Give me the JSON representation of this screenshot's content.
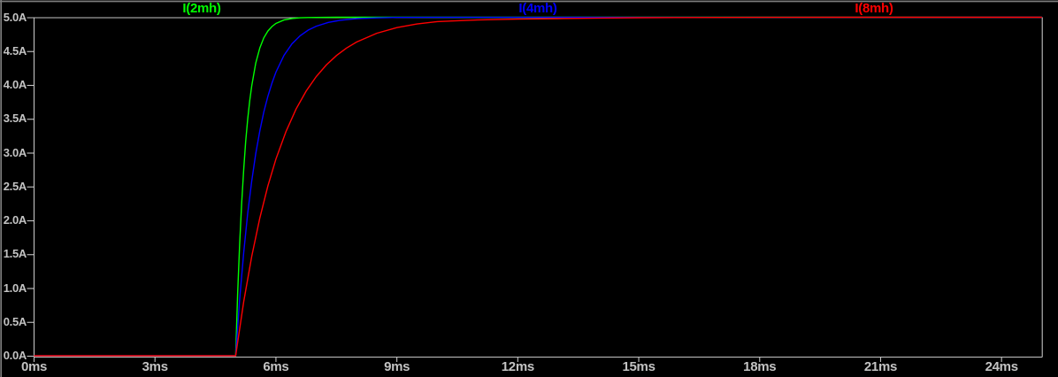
{
  "window": {
    "app": "waveform-viewer",
    "background": "#000000",
    "border_color": "#7d7d7d"
  },
  "axes": {
    "color": "#c3c3c3",
    "text_color": "#c3c3c3"
  },
  "chart_data": {
    "type": "line",
    "title": "",
    "legend_position": "top-inside",
    "grid": "top-gridline-only-at-5A",
    "x_unit": "ms",
    "y_unit": "A",
    "x_range_ms": [
      0,
      25
    ],
    "y_range_A": [
      0,
      5
    ],
    "x_tick_values": [
      0,
      3,
      6,
      9,
      12,
      15,
      18,
      21,
      24
    ],
    "x_tick_labels": [
      "0ms",
      "3ms",
      "6ms",
      "9ms",
      "12ms",
      "15ms",
      "18ms",
      "21ms",
      "24ms"
    ],
    "y_tick_values": [
      5.0,
      4.5,
      4.0,
      3.5,
      3.0,
      2.5,
      2.0,
      1.5,
      1.0,
      0.5,
      0.0
    ],
    "y_tick_labels": [
      "5.0A",
      "4.5A",
      "4.0A",
      "3.5A",
      "3.0A",
      "2.5A",
      "2.0A",
      "1.5A",
      "1.0A",
      "0.5A",
      "0.0A"
    ],
    "description": "Inductor current step response starting at t=5ms, rising exponentially to 5A; smaller inductance settles faster.",
    "series": [
      {
        "name": "I(2mh)",
        "color": "#00ff00",
        "points": [
          [
            0,
            0
          ],
          [
            5,
            0
          ],
          [
            5.05,
            0.906
          ],
          [
            5.1,
            1.648
          ],
          [
            5.15,
            2.256
          ],
          [
            5.2,
            2.753
          ],
          [
            5.25,
            3.161
          ],
          [
            5.3,
            3.494
          ],
          [
            5.35,
            3.767
          ],
          [
            5.4,
            3.99
          ],
          [
            5.5,
            4.323
          ],
          [
            5.6,
            4.546
          ],
          [
            5.7,
            4.696
          ],
          [
            5.8,
            4.796
          ],
          [
            5.9,
            4.863
          ],
          [
            6,
            4.908
          ],
          [
            6.2,
            4.959
          ],
          [
            6.4,
            4.982
          ],
          [
            6.6,
            4.992
          ],
          [
            6.8,
            4.996
          ],
          [
            7,
            4.998
          ],
          [
            7.5,
            5
          ],
          [
            25,
            5
          ]
        ]
      },
      {
        "name": "I(4mh)",
        "color": "#0000ff",
        "points": [
          [
            0,
            0
          ],
          [
            5,
            0
          ],
          [
            5.1,
            0.831
          ],
          [
            5.2,
            1.524
          ],
          [
            5.3,
            2.103
          ],
          [
            5.4,
            2.584
          ],
          [
            5.5,
            2.986
          ],
          [
            5.6,
            3.32
          ],
          [
            5.7,
            3.6
          ],
          [
            5.8,
            3.832
          ],
          [
            5.9,
            4.026
          ],
          [
            6,
            4.188
          ],
          [
            6.2,
            4.436
          ],
          [
            6.4,
            4.608
          ],
          [
            6.6,
            4.727
          ],
          [
            6.8,
            4.81
          ],
          [
            7,
            4.868
          ],
          [
            7.3,
            4.924
          ],
          [
            7.6,
            4.956
          ],
          [
            8,
            4.979
          ],
          [
            8.5,
            4.991
          ],
          [
            9,
            4.997
          ],
          [
            10,
            4.999
          ],
          [
            25,
            5
          ]
        ]
      },
      {
        "name": "I(8mh)",
        "color": "#ff0000",
        "points": [
          [
            0,
            0
          ],
          [
            5,
            0
          ],
          [
            5.2,
            0.799
          ],
          [
            5.4,
            1.47
          ],
          [
            5.6,
            2.034
          ],
          [
            5.8,
            2.507
          ],
          [
            6,
            2.905
          ],
          [
            6.25,
            3.313
          ],
          [
            6.5,
            3.645
          ],
          [
            6.75,
            3.91
          ],
          [
            7,
            4.124
          ],
          [
            7.25,
            4.295
          ],
          [
            7.5,
            4.434
          ],
          [
            7.75,
            4.545
          ],
          [
            8,
            4.634
          ],
          [
            8.5,
            4.763
          ],
          [
            9,
            4.847
          ],
          [
            9.5,
            4.901
          ],
          [
            10,
            4.936
          ],
          [
            11,
            4.959
          ],
          [
            12,
            4.972
          ],
          [
            13,
            4.981
          ],
          [
            14,
            4.988
          ],
          [
            15,
            4.993
          ],
          [
            16,
            4.996
          ],
          [
            18,
            4.999
          ],
          [
            20,
            5
          ],
          [
            25,
            5
          ]
        ]
      }
    ]
  }
}
